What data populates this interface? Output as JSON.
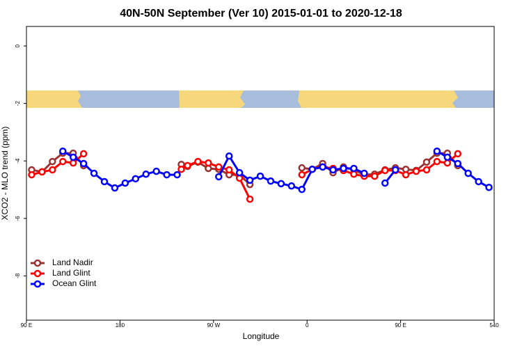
{
  "chart_data": {
    "type": "line",
    "title": "40N-50N September (Ver 10)   2015-01-01 to 2020-12-18",
    "x_label": "Longitude",
    "y_label": "XCO2 - MLO trend (ppm)",
    "xlim": [
      90,
      540
    ],
    "ylim": [
      -9.54,
      0.68
    ],
    "xticks": [
      {
        "value": 90,
        "label": "90 E"
      },
      180,
      {
        "value": 270,
        "label": "90 W"
      },
      {
        "value": 360,
        "label": "0"
      },
      {
        "value": 450,
        "label": "90 E"
      },
      540
    ],
    "yticks": [
      0,
      -2,
      -4,
      -6,
      -8
    ],
    "legend": "bottom-left",
    "series": [
      {
        "name": "Land Nadir",
        "color": "#993333",
        "x": [
          95,
          105,
          115,
          125,
          135,
          145,
          190,
          239,
          245,
          255,
          265,
          275,
          285,
          295,
          305,
          330,
          355,
          365,
          375,
          385,
          395,
          405,
          415,
          425,
          435,
          445,
          455,
          465,
          475,
          485,
          495,
          505
        ],
        "values": [
          -4.31,
          -4.38,
          -4.02,
          -3.73,
          -3.73,
          -4.16,
          null,
          -4.12,
          -4.19,
          -4.04,
          -4.26,
          -4.29,
          -4.48,
          -4.48,
          -4.82,
          null,
          -4.24,
          -4.29,
          -4.09,
          -4.41,
          -4.21,
          -4.31,
          -4.48,
          -4.46,
          -4.31,
          -4.24,
          -4.29,
          -4.33,
          -4.04,
          -3.73,
          -3.73,
          -4.16
        ]
      },
      {
        "name": "Land Glint",
        "color": "#ff0000",
        "x": [
          95,
          105,
          115,
          125,
          135,
          145,
          190,
          239,
          245,
          255,
          265,
          275,
          285,
          295,
          305,
          330,
          355,
          365,
          375,
          385,
          395,
          405,
          415,
          425,
          435,
          445,
          455,
          465,
          475,
          485,
          495,
          505
        ],
        "values": [
          -4.48,
          -4.38,
          -4.31,
          -4.02,
          -4.07,
          -3.75,
          null,
          -4.29,
          -4.16,
          -4.02,
          -4.07,
          -4.21,
          -4.31,
          -4.6,
          -5.33,
          null,
          -4.48,
          -4.29,
          -4.21,
          -4.26,
          -4.33,
          -4.46,
          -4.53,
          -4.53,
          -4.33,
          -4.33,
          -4.48,
          -4.36,
          -4.31,
          -4.02,
          -4.07,
          -3.75
        ]
      },
      {
        "name": "Ocean Glint",
        "color": "#0000ff",
        "x": [
          125,
          135,
          145,
          155,
          165,
          175,
          185,
          195,
          205,
          215,
          225,
          235,
          255,
          275,
          285,
          295,
          305,
          315,
          325,
          335,
          345,
          355,
          365,
          375,
          385,
          395,
          405,
          415,
          425,
          435,
          445,
          465,
          485,
          495,
          505,
          515,
          525,
          535
        ],
        "values": [
          -3.66,
          -3.87,
          -4.09,
          -4.43,
          -4.72,
          -4.94,
          -4.77,
          -4.62,
          -4.46,
          -4.36,
          -4.48,
          -4.48,
          null,
          -4.55,
          -3.83,
          -4.41,
          -4.67,
          -4.53,
          -4.7,
          -4.79,
          -4.87,
          -4.99,
          -4.29,
          -4.21,
          -4.31,
          -4.26,
          -4.26,
          -4.43,
          null,
          -4.77,
          -4.31,
          null,
          -3.66,
          -3.87,
          -4.09,
          -4.43,
          -4.72,
          -4.92
        ]
      }
    ]
  }
}
